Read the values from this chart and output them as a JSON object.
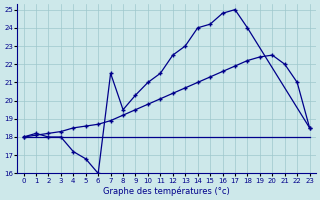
{
  "title": "Graphe des températures (°c)",
  "background_color": "#cde8ea",
  "grid_color": "#9fc8cc",
  "line_color": "#00008b",
  "xlim": [
    -0.5,
    23.5
  ],
  "ylim": [
    16,
    25.3
  ],
  "xticks": [
    0,
    1,
    2,
    3,
    4,
    5,
    6,
    7,
    8,
    9,
    10,
    11,
    12,
    13,
    14,
    15,
    16,
    17,
    18,
    19,
    20,
    21,
    22,
    23
  ],
  "yticks": [
    16,
    17,
    18,
    19,
    20,
    21,
    22,
    23,
    24,
    25
  ],
  "line1_x": [
    0,
    1,
    2,
    3,
    4,
    5,
    6,
    7,
    8,
    9,
    10,
    11,
    12,
    13,
    14,
    15,
    16,
    17,
    18,
    23
  ],
  "line1_y": [
    18,
    18.2,
    18.0,
    18.0,
    17.2,
    16.8,
    16.0,
    21.5,
    19.5,
    20.3,
    21.0,
    21.5,
    22.5,
    23.0,
    24.0,
    24.2,
    24.8,
    25.0,
    24.0,
    18.5
  ],
  "line2_x": [
    0,
    2,
    17,
    23
  ],
  "line2_y": [
    18,
    18,
    18,
    18
  ],
  "line3_x": [
    0,
    1,
    2,
    3,
    4,
    5,
    6,
    7,
    8,
    9,
    10,
    11,
    12,
    13,
    14,
    15,
    16,
    17,
    18,
    19,
    20,
    21,
    22,
    23
  ],
  "line3_y": [
    18,
    18.1,
    18.2,
    18.3,
    18.5,
    18.6,
    18.7,
    18.9,
    19.2,
    19.5,
    19.8,
    20.1,
    20.4,
    20.7,
    21.0,
    21.3,
    21.6,
    21.9,
    22.2,
    22.4,
    22.5,
    22.0,
    21.0,
    18.5
  ],
  "marker": "+",
  "markersize": 3.5,
  "linewidth": 0.9
}
